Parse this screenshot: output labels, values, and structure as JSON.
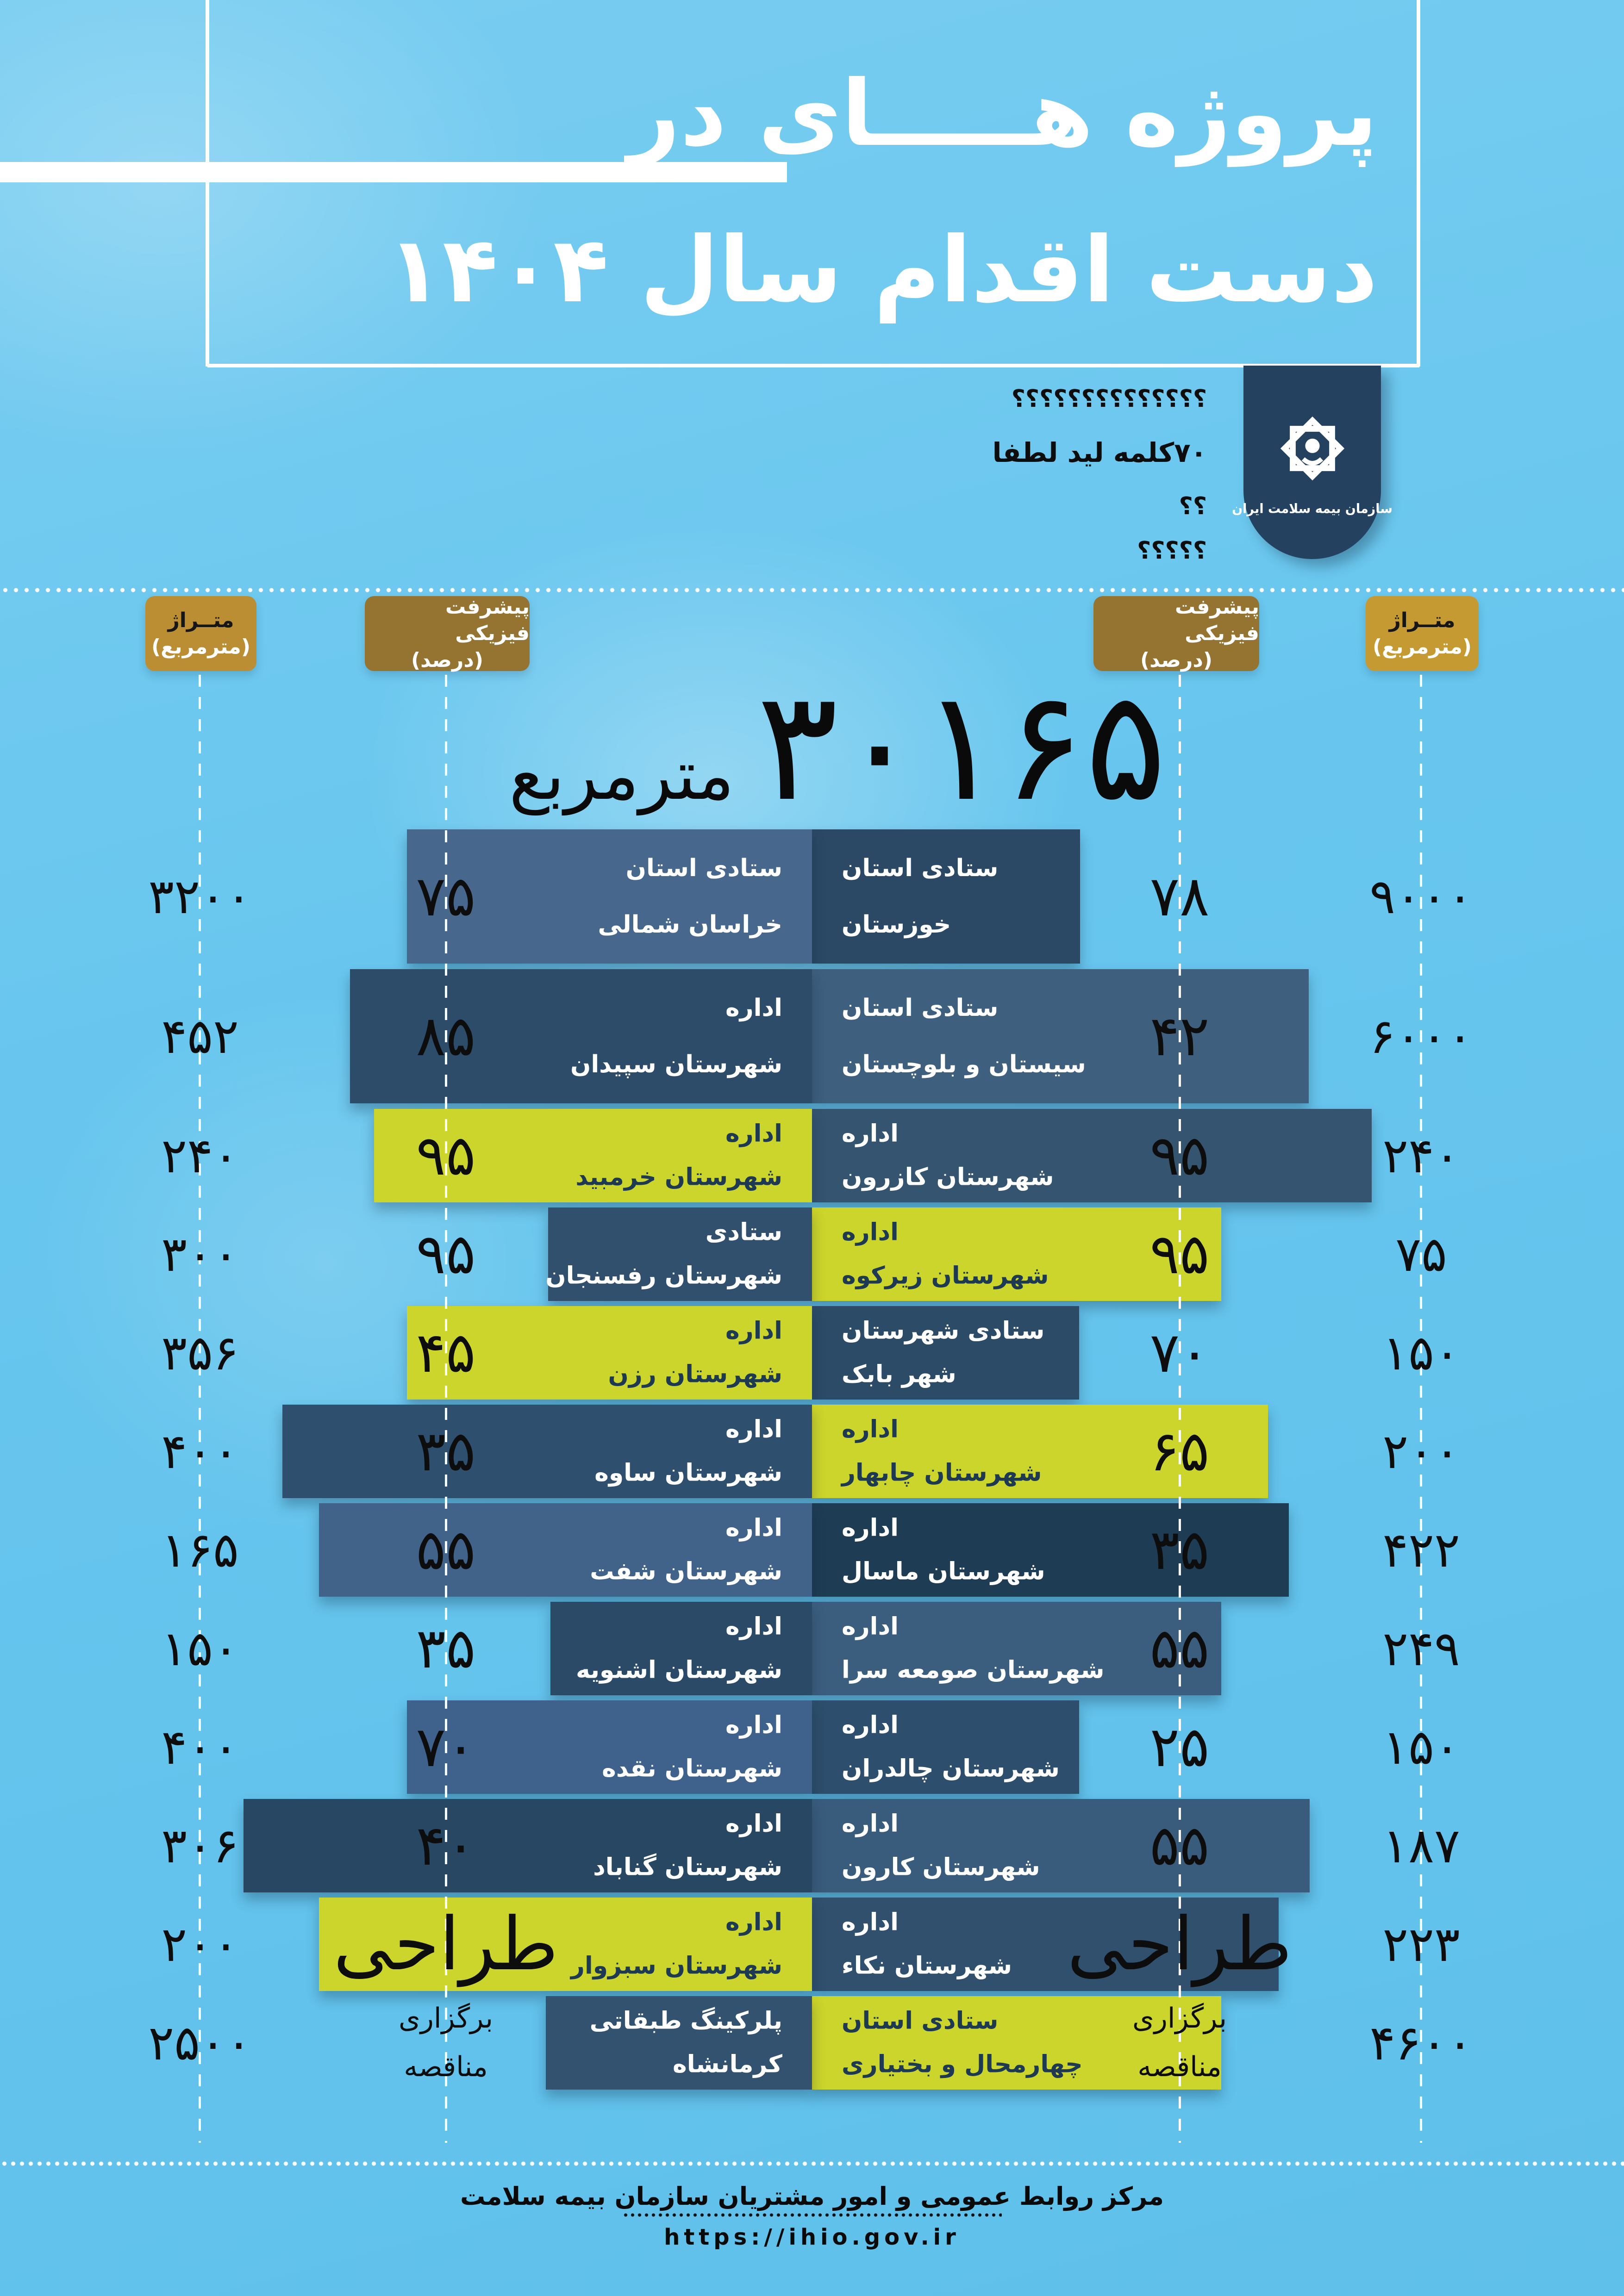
{
  "title": {
    "line1": "پروژه هـــــای در",
    "line2": "دست اقدام سال ۱۴۰۴"
  },
  "lead_placeholder": {
    "line1": "؟؟؟؟؟؟؟؟؟؟؟؟؟؟",
    "line2": "۷۰کلمه لید لطفا",
    "line3": "؟؟",
    "line4": "؟؟؟؟؟"
  },
  "logo": {
    "org_name": "سازمان بیمه سلامت ایران",
    "icon": "ihio-emblem-icon"
  },
  "column_headers": {
    "left": {
      "area_title": "متــراژ",
      "area_unit": "(مترمربع)",
      "prog_title": "پیشرفت فیزیکی",
      "prog_unit": "(درصد)"
    },
    "right": {
      "area_title": "متــراژ",
      "area_unit": "(مترمربع)",
      "prog_title": "پیشرفت فیزیکی",
      "prog_unit": "(درصد)"
    }
  },
  "total": {
    "value": "۳۰۱۶۵",
    "unit": "مترمربع"
  },
  "colors": {
    "yellow": "#ccd52b",
    "dark_text": "#1d3a52",
    "badge_gold": "#c59a33",
    "badge_olive": "#957331",
    "logo_navy": "#24415f"
  },
  "rows": [
    {
      "right": {
        "dept": "ستادی استان",
        "name": "خوزستان",
        "progress": "۷۸",
        "area": "۹۰۰۰",
        "color": "#2b4964",
        "len": 579,
        "text": "light",
        "ptype": "num"
      },
      "left": {
        "dept": "ستادی استان",
        "name": "خراسان شمالی",
        "progress": "۷۵",
        "area": "۳۲۰۰",
        "color": "#47688c",
        "len": 875,
        "text": "light",
        "ptype": "num"
      }
    },
    {
      "right": {
        "dept": "ستادی استان",
        "name": "سیستان و بلوچستان",
        "progress": "۴۲",
        "area": "۶۰۰۰",
        "color": "#3e5f7e",
        "len": 1073,
        "text": "light",
        "ptype": "num"
      },
      "left": {
        "dept": "اداره",
        "name": "شهرستان سپیدان",
        "progress": "۸۵",
        "area": "۴۵۲",
        "color": "#2d4c69",
        "len": 998,
        "text": "light",
        "ptype": "num"
      }
    },
    {
      "right": {
        "dept": "اداره",
        "name": "شهرستان کازرون",
        "progress": "۹۵",
        "area": "۲۴۰",
        "color": "#34546f",
        "len": 1209,
        "text": "light",
        "ptype": "num"
      },
      "left": {
        "dept": "اداره",
        "name": "شهرستان خرمبید",
        "progress": "۹۵",
        "area": "۲۴۰",
        "color": "#ccd52b",
        "len": 946,
        "text": "dark",
        "ptype": "num"
      }
    },
    {
      "right": {
        "dept": "اداره",
        "name": "شهرستان زیرکوه",
        "progress": "۹۵",
        "area": "۷۵",
        "color": "#ccd52b",
        "len": 884,
        "text": "dark",
        "ptype": "num"
      },
      "left": {
        "dept": "ستادی",
        "name": "شهرستان رفسنجان",
        "progress": "۹۵",
        "area": "۳۰۰",
        "color": "#30506e",
        "len": 570,
        "text": "light",
        "ptype": "num"
      }
    },
    {
      "right": {
        "dept": "ستادی شهرستان",
        "name": "شهر بابک",
        "progress": "۷۰",
        "area": "۱۵۰",
        "color": "#2c4b67",
        "len": 577,
        "text": "light",
        "ptype": "num"
      },
      "left": {
        "dept": "اداره",
        "name": "شهرستان رزن",
        "progress": "۴۵",
        "area": "۳۵۶",
        "color": "#ccd52b",
        "len": 875,
        "text": "dark",
        "ptype": "num"
      }
    },
    {
      "right": {
        "dept": "اداره",
        "name": "شهرستان چابهار",
        "progress": "۶۵",
        "area": "۲۰۰",
        "color": "#ccd52b",
        "len": 985,
        "text": "dark",
        "ptype": "num"
      },
      "left": {
        "dept": "اداره",
        "name": "شهرستان ساوه",
        "progress": "۳۵",
        "area": "۴۰۰",
        "color": "#2e4f6d",
        "len": 1144,
        "text": "light",
        "ptype": "num"
      }
    },
    {
      "right": {
        "dept": "اداره",
        "name": "شهرستان ماسال",
        "progress": "۳۵",
        "area": "۴۲۲",
        "color": "#1f3c55",
        "len": 1030,
        "text": "light",
        "ptype": "num"
      },
      "left": {
        "dept": "اداره",
        "name": "شهرستان شفت",
        "progress": "۵۵",
        "area": "۱۶۵",
        "color": "#41638a",
        "len": 1065,
        "text": "light",
        "ptype": "num"
      }
    },
    {
      "right": {
        "dept": "اداره",
        "name": "شهرستان صومعه سرا",
        "progress": "۵۵",
        "area": "۲۴۹",
        "color": "#3c5e7e",
        "len": 884,
        "text": "light",
        "ptype": "num"
      },
      "left": {
        "dept": "اداره",
        "name": "شهرستان اشنویه",
        "progress": "۳۵",
        "area": "۱۵۰",
        "color": "#2a4a68",
        "len": 565,
        "text": "light",
        "ptype": "num"
      }
    },
    {
      "right": {
        "dept": "اداره",
        "name": "شهرستان چالدران",
        "progress": "۲۵",
        "area": "۱۵۰",
        "color": "#2d4e6c",
        "len": 577,
        "text": "light",
        "ptype": "num"
      },
      "left": {
        "dept": "اداره",
        "name": "شهرستان نقده",
        "progress": "۷۰",
        "area": "۴۰۰",
        "color": "#3e628c",
        "len": 875,
        "text": "light",
        "ptype": "num"
      }
    },
    {
      "right": {
        "dept": "اداره",
        "name": "شهرستان کارون",
        "progress": "۵۵",
        "area": "۱۸۷",
        "color": "#3a5c7c",
        "len": 1075,
        "text": "light",
        "ptype": "num"
      },
      "left": {
        "dept": "اداره",
        "name": "شهرستان گناباد",
        "progress": "۴۰",
        "area": "۳۰۶",
        "color": "#274763",
        "len": 1228,
        "text": "light",
        "ptype": "num"
      }
    },
    {
      "right": {
        "dept": "اداره",
        "name": "شهرستان نکاء",
        "progress": "طراحی",
        "area": "۲۲۳",
        "color": "#30506e",
        "len": 1008,
        "text": "light",
        "ptype": "word"
      },
      "left": {
        "dept": "اداره",
        "name": "شهرستان سبزوار",
        "progress": "طراحی",
        "area": "۲۰۰",
        "color": "#ccd52b",
        "len": 1065,
        "text": "dark",
        "ptype": "word"
      }
    },
    {
      "right": {
        "dept": "ستادی استان",
        "name": "چهارمحال و بختیاری",
        "progress": [
          "برگزاری",
          "مناقصه"
        ],
        "area": "۴۶۰۰",
        "color": "#ccd52b",
        "len": 884,
        "text": "dark",
        "ptype": "status"
      },
      "left": {
        "dept": "پلرکینگ طبقاتی",
        "name": "کرمانشاه",
        "progress": [
          "برگزاری",
          "مناقصه"
        ],
        "area": "۲۵۰۰",
        "color": "#32526f",
        "len": 575,
        "text": "light",
        "ptype": "status"
      }
    }
  ],
  "footer": {
    "org": "مرکز روابط عمومی و امور مشتریان سازمان بیمه سلامت",
    "url": "https://ihio.gov.ir"
  },
  "chart_data": {
    "type": "bar",
    "title": "پروژه هــای در دست اقدام سال ۱۴۰۴",
    "subtitle_total": {
      "value": 30165,
      "unit": "مترمربع"
    },
    "legend": [
      "متراژ (مترمربع)",
      "پیشرفت فیزیکی (درصد)"
    ],
    "layout_hint": "mirrored horizontal bars from center; right and left panels; yellow bars = highlighted projects",
    "panels": [
      {
        "side": "right",
        "items": [
          {
            "label": "ستادی استان خوزستان",
            "progress_pct": 78,
            "area_m2": 9000
          },
          {
            "label": "ستادی استان سیستان و بلوچستان",
            "progress_pct": 42,
            "area_m2": 6000
          },
          {
            "label": "اداره شهرستان کازرون",
            "progress_pct": 95,
            "area_m2": 240
          },
          {
            "label": "اداره شهرستان زیرکوه",
            "progress_pct": 95,
            "area_m2": 75,
            "highlight": true
          },
          {
            "label": "ستادی شهرستان شهر بابک",
            "progress_pct": 70,
            "area_m2": 150
          },
          {
            "label": "اداره شهرستان چابهار",
            "progress_pct": 65,
            "area_m2": 200,
            "highlight": true
          },
          {
            "label": "اداره شهرستان ماسال",
            "progress_pct": 35,
            "area_m2": 422
          },
          {
            "label": "اداره شهرستان صومعه سرا",
            "progress_pct": 55,
            "area_m2": 249
          },
          {
            "label": "اداره شهرستان چالدران",
            "progress_pct": 25,
            "area_m2": 150
          },
          {
            "label": "اداره شهرستان کارون",
            "progress_pct": 55,
            "area_m2": 187
          },
          {
            "label": "اداره شهرستان نکاء",
            "progress_status": "طراحی",
            "area_m2": 223
          },
          {
            "label": "ستادی استان چهارمحال و بختیاری",
            "progress_status": "برگزاری مناقصه",
            "area_m2": 4600,
            "highlight": true
          }
        ]
      },
      {
        "side": "left",
        "items": [
          {
            "label": "ستادی استان خراسان شمالی",
            "progress_pct": 75,
            "area_m2": 3200
          },
          {
            "label": "اداره شهرستان سپیدان",
            "progress_pct": 85,
            "area_m2": 452
          },
          {
            "label": "اداره شهرستان خرمبید",
            "progress_pct": 95,
            "area_m2": 240,
            "highlight": true
          },
          {
            "label": "ستادی شهرستان رفسنجان",
            "progress_pct": 95,
            "area_m2": 300
          },
          {
            "label": "اداره شهرستان رزن",
            "progress_pct": 45,
            "area_m2": 356,
            "highlight": true
          },
          {
            "label": "اداره شهرستان ساوه",
            "progress_pct": 35,
            "area_m2": 400
          },
          {
            "label": "اداره شهرستان شفت",
            "progress_pct": 55,
            "area_m2": 165
          },
          {
            "label": "اداره شهرستان اشنویه",
            "progress_pct": 35,
            "area_m2": 150
          },
          {
            "label": "اداره شهرستان نقده",
            "progress_pct": 70,
            "area_m2": 400
          },
          {
            "label": "اداره شهرستان گناباد",
            "progress_pct": 40,
            "area_m2": 306
          },
          {
            "label": "اداره شهرستان سبزوار",
            "progress_status": "طراحی",
            "area_m2": 200,
            "highlight": true
          },
          {
            "label": "پلرکینگ طبقاتی کرمانشاه",
            "progress_status": "برگزاری مناقصه",
            "area_m2": 2500
          }
        ]
      }
    ]
  }
}
